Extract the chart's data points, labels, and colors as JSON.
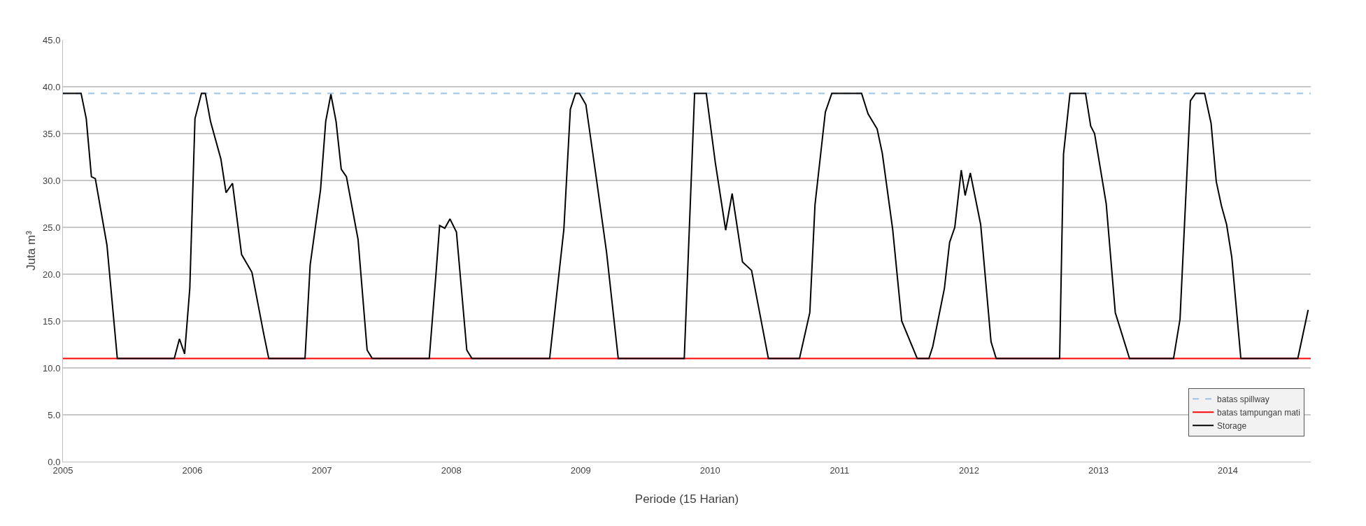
{
  "chart_data": {
    "type": "line",
    "xlabel": "Periode (15 Harian)",
    "ylabel": "Juta m³",
    "xlim": [
      2005,
      2014.64
    ],
    "xticks": [
      2005,
      2006,
      2007,
      2008,
      2009,
      2010,
      2011,
      2012,
      2013,
      2014
    ],
    "ylim": [
      0,
      45
    ],
    "yticks": [
      {
        "value": 0,
        "label": "0.0"
      },
      {
        "value": 5,
        "label": "5.0"
      },
      {
        "value": 10,
        "label": "10.0"
      },
      {
        "value": 15,
        "label": "15.0"
      },
      {
        "value": 20,
        "label": "20.0"
      },
      {
        "value": 25,
        "label": "25.0"
      },
      {
        "value": 30,
        "label": "30.0"
      },
      {
        "value": 35,
        "label": "35.0"
      },
      {
        "value": 40,
        "label": "40.0"
      },
      {
        "value": 45,
        "label": "45.0"
      }
    ],
    "grid": "y",
    "legend": "bottom right",
    "marker": "none",
    "series": [
      {
        "name": "batas spillway",
        "color": "#9dc3e6",
        "line_style": "dashed",
        "x": [
          2005,
          2014.64
        ],
        "values": [
          39.3,
          39.3
        ]
      },
      {
        "name": "batas tampungan mati",
        "color": "#ff0000",
        "line_style": "solid",
        "x": [
          2005,
          2014.64
        ],
        "values": [
          11.0,
          11.0
        ]
      },
      {
        "name": "Storage",
        "color": "#000000",
        "line_style": "solid",
        "x": [
          2005.0,
          2005.14,
          2005.18,
          2005.22,
          2005.25,
          2005.34,
          2005.42,
          2005.86,
          2005.9,
          2005.94,
          2005.98,
          2006.02,
          2006.07,
          2006.1,
          2006.14,
          2006.22,
          2006.26,
          2006.31,
          2006.38,
          2006.46,
          2006.55,
          2006.59,
          2006.87,
          2006.91,
          2006.99,
          2007.03,
          2007.07,
          2007.11,
          2007.15,
          2007.19,
          2007.28,
          2007.35,
          2007.39,
          2007.83,
          2007.88,
          2007.91,
          2007.95,
          2007.99,
          2008.04,
          2008.12,
          2008.16,
          2008.76,
          2008.87,
          2008.92,
          2008.96,
          2008.99,
          2009.04,
          2009.12,
          2009.2,
          2009.29,
          2009.8,
          2009.88,
          2009.97,
          2010.04,
          2010.12,
          2010.17,
          2010.25,
          2010.32,
          2010.45,
          2010.69,
          2010.77,
          2010.81,
          2010.89,
          2010.94,
          2011.17,
          2011.22,
          2011.29,
          2011.33,
          2011.41,
          2011.48,
          2011.6,
          2011.69,
          2011.72,
          2011.81,
          2011.85,
          2011.89,
          2011.94,
          2011.97,
          2012.01,
          2012.09,
          2012.17,
          2012.21,
          2012.7,
          2012.73,
          2012.78,
          2012.9,
          2012.94,
          2012.97,
          2013.06,
          2013.13,
          2013.24,
          2013.58,
          2013.63,
          2013.71,
          2013.75,
          2013.82,
          2013.87,
          2013.91,
          2013.95,
          2013.99,
          2014.03,
          2014.1,
          2014.54,
          2014.62
        ],
        "values": [
          39.3,
          39.3,
          36.6,
          30.4,
          30.2,
          23.1,
          11.0,
          11.0,
          13.1,
          11.5,
          18.5,
          36.6,
          39.3,
          39.3,
          36.3,
          32.3,
          28.7,
          29.7,
          22.1,
          20.2,
          13.7,
          11.0,
          11.0,
          21.0,
          29.0,
          36.3,
          39.2,
          36.3,
          31.2,
          30.4,
          23.7,
          11.9,
          11.0,
          11.0,
          19.7,
          25.2,
          24.9,
          25.9,
          24.5,
          11.9,
          11.0,
          11.0,
          24.8,
          37.6,
          39.3,
          39.3,
          38.1,
          30.3,
          22.3,
          11.0,
          11.0,
          39.3,
          39.3,
          31.9,
          24.7,
          28.6,
          21.3,
          20.4,
          11.0,
          11.0,
          15.9,
          27.4,
          37.3,
          39.3,
          39.3,
          37.1,
          35.5,
          32.9,
          24.8,
          15.0,
          11.0,
          11.0,
          12.3,
          18.5,
          23.4,
          25.0,
          31.1,
          28.4,
          30.8,
          25.3,
          12.8,
          11.0,
          11.0,
          32.8,
          39.3,
          39.3,
          35.8,
          35.0,
          27.5,
          15.9,
          11.0,
          11.0,
          15.2,
          38.5,
          39.3,
          39.3,
          36.1,
          29.9,
          27.3,
          25.3,
          21.8,
          11.0,
          11.0,
          16.2
        ]
      }
    ]
  }
}
